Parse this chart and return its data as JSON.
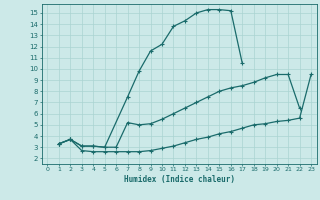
{
  "xlabel": "Humidex (Indice chaleur)",
  "xlim": [
    -0.5,
    23.5
  ],
  "ylim": [
    1.5,
    15.8
  ],
  "xticks": [
    0,
    1,
    2,
    3,
    4,
    5,
    6,
    7,
    8,
    9,
    10,
    11,
    12,
    13,
    14,
    15,
    16,
    17,
    18,
    19,
    20,
    21,
    22,
    23
  ],
  "yticks": [
    2,
    3,
    4,
    5,
    6,
    7,
    8,
    9,
    10,
    11,
    12,
    13,
    14,
    15
  ],
  "bg_color": "#cce9e8",
  "grid_color": "#aad4d2",
  "line_color": "#1a6b6b",
  "curve1_x": [
    1,
    2,
    3,
    4,
    5,
    7,
    8,
    9,
    10,
    11,
    12,
    13,
    14,
    15,
    16,
    17
  ],
  "curve1_y": [
    3.3,
    3.7,
    3.1,
    3.1,
    3.0,
    7.5,
    9.8,
    11.6,
    12.2,
    13.8,
    14.3,
    15.0,
    15.3,
    15.3,
    15.2,
    10.5
  ],
  "curve2_x": [
    1,
    2,
    3,
    4,
    5,
    6,
    7,
    8,
    9,
    10,
    11,
    12,
    13,
    14,
    15,
    16,
    17,
    18,
    19,
    20,
    21,
    22
  ],
  "curve2_y": [
    3.3,
    3.7,
    3.1,
    3.1,
    3.0,
    3.0,
    5.2,
    5.0,
    5.1,
    5.5,
    6.0,
    6.5,
    7.0,
    7.5,
    8.0,
    8.3,
    8.5,
    8.8,
    9.2,
    9.5,
    9.5,
    6.5
  ],
  "curve3_x": [
    1,
    2,
    3,
    4,
    5,
    6,
    7,
    8,
    9,
    10,
    11,
    12,
    13,
    14,
    15,
    16,
    17,
    18,
    19,
    20,
    21,
    22,
    23
  ],
  "curve3_y": [
    3.3,
    3.7,
    2.7,
    2.6,
    2.6,
    2.6,
    2.6,
    2.6,
    2.7,
    2.9,
    3.1,
    3.4,
    3.7,
    3.9,
    4.2,
    4.4,
    4.7,
    5.0,
    5.1,
    5.3,
    5.4,
    5.6,
    9.5
  ],
  "marker": "+",
  "marker_size": 3.5,
  "linewidth": 0.9
}
